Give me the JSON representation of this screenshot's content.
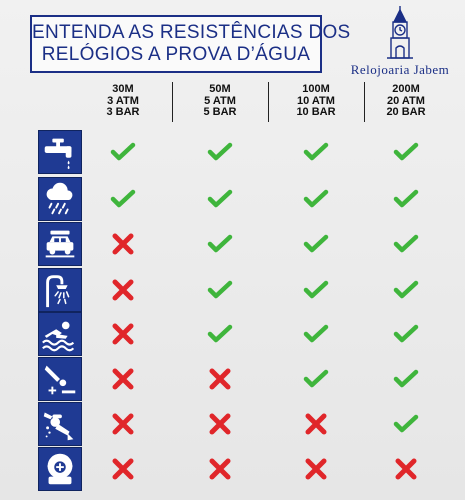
{
  "title": {
    "line1": "ENTENDA AS RESISTÊNCIAS DOS",
    "line2": "RELÓGIOS A PROVA D’ÁGUA"
  },
  "brand": {
    "name": "Relojoaria Jabem",
    "icon": "clock-tower-icon"
  },
  "columns": [
    {
      "depth": "30M",
      "atm": "3 ATM",
      "bar": "3 BAR"
    },
    {
      "depth": "50M",
      "atm": "5 ATM",
      "bar": "5 BAR"
    },
    {
      "depth": "100M",
      "atm": "10 ATM",
      "bar": "10 BAR"
    },
    {
      "depth": "200M",
      "atm": "20 ATM",
      "bar": "20 BAR"
    }
  ],
  "rows": [
    {
      "icon": "faucet-icon",
      "values": [
        true,
        true,
        true,
        true
      ]
    },
    {
      "icon": "rain-icon",
      "values": [
        true,
        true,
        true,
        true
      ]
    },
    {
      "icon": "car-wash-icon",
      "values": [
        false,
        true,
        true,
        true
      ]
    },
    {
      "icon": "shower-icon",
      "values": [
        false,
        true,
        true,
        true
      ]
    },
    {
      "icon": "swimming-icon",
      "values": [
        false,
        true,
        true,
        true
      ]
    },
    {
      "icon": "diving-icon",
      "values": [
        false,
        false,
        true,
        true
      ]
    },
    {
      "icon": "scuba-diving-icon",
      "values": [
        false,
        false,
        false,
        true
      ]
    },
    {
      "icon": "diving-helmet-icon",
      "values": [
        false,
        false,
        false,
        false
      ]
    }
  ],
  "colors": {
    "navy": "#1b2f86",
    "icon_bg": "#1f3a93",
    "check": "#3fb53c",
    "cross": "#e0262a"
  }
}
